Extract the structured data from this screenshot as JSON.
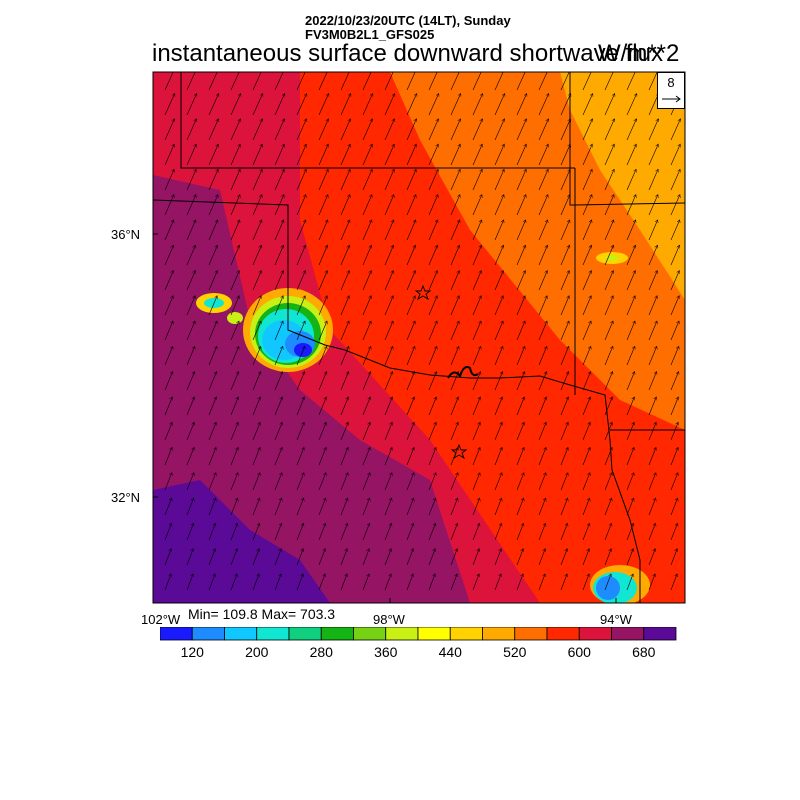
{
  "header": {
    "datetime": "2022/10/23/20UTC (14LT), Sunday",
    "model": "FV3M0B2L1_GFS025",
    "title": "instantaneous surface downward shortwave flux",
    "units": "W/m**2"
  },
  "map": {
    "lat_labels": [
      "36°N",
      "32°N"
    ],
    "lon_labels": [
      "102°W",
      "98°W",
      "94°W"
    ],
    "stats": "Min= 109.8 Max= 703.3",
    "wind_reference": "8",
    "markers": [
      "star",
      "star"
    ]
  },
  "colorbar": {
    "colors": [
      "#1a1aff",
      "#1e8cff",
      "#10c8ff",
      "#10e6d2",
      "#10d080",
      "#14b414",
      "#78d214",
      "#c8f014",
      "#ffff00",
      "#ffd200",
      "#ffaa00",
      "#ff6e00",
      "#ff2800",
      "#dc143c",
      "#961464",
      "#5a0a96"
    ],
    "labels": [
      "120",
      "200",
      "280",
      "360",
      "440",
      "520",
      "600",
      "680"
    ]
  }
}
